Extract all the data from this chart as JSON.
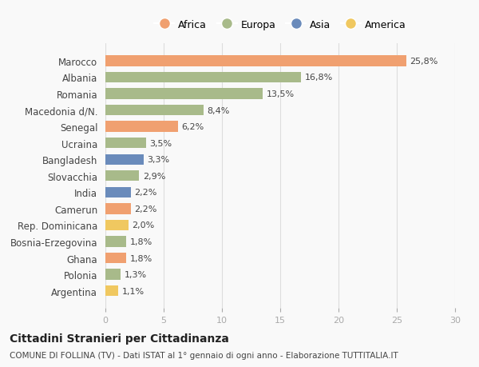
{
  "countries": [
    "Marocco",
    "Albania",
    "Romania",
    "Macedonia d/N.",
    "Senegal",
    "Ucraina",
    "Bangladesh",
    "Slovacchia",
    "India",
    "Camerun",
    "Rep. Dominicana",
    "Bosnia-Erzegovina",
    "Ghana",
    "Polonia",
    "Argentina"
  ],
  "values": [
    25.8,
    16.8,
    13.5,
    8.4,
    6.2,
    3.5,
    3.3,
    2.9,
    2.2,
    2.2,
    2.0,
    1.8,
    1.8,
    1.3,
    1.1
  ],
  "labels": [
    "25,8%",
    "16,8%",
    "13,5%",
    "8,4%",
    "6,2%",
    "3,5%",
    "3,3%",
    "2,9%",
    "2,2%",
    "2,2%",
    "2,0%",
    "1,8%",
    "1,8%",
    "1,3%",
    "1,1%"
  ],
  "continents": [
    "Africa",
    "Europa",
    "Europa",
    "Europa",
    "Africa",
    "Europa",
    "Asia",
    "Europa",
    "Asia",
    "Africa",
    "America",
    "Europa",
    "Africa",
    "Europa",
    "America"
  ],
  "colors": {
    "Africa": "#F0A070",
    "Europa": "#A8BA8A",
    "Asia": "#6A8BBB",
    "America": "#F0C860"
  },
  "legend_order": [
    "Africa",
    "Europa",
    "Asia",
    "America"
  ],
  "xlim": [
    0,
    30
  ],
  "xticks": [
    0,
    5,
    10,
    15,
    20,
    25,
    30
  ],
  "title": "Cittadini Stranieri per Cittadinanza",
  "subtitle": "COMUNE DI FOLLINA (TV) - Dati ISTAT al 1° gennaio di ogni anno - Elaborazione TUTTITALIA.IT",
  "bg_color": "#f9f9f9",
  "grid_color": "#dddddd",
  "bar_height": 0.65
}
